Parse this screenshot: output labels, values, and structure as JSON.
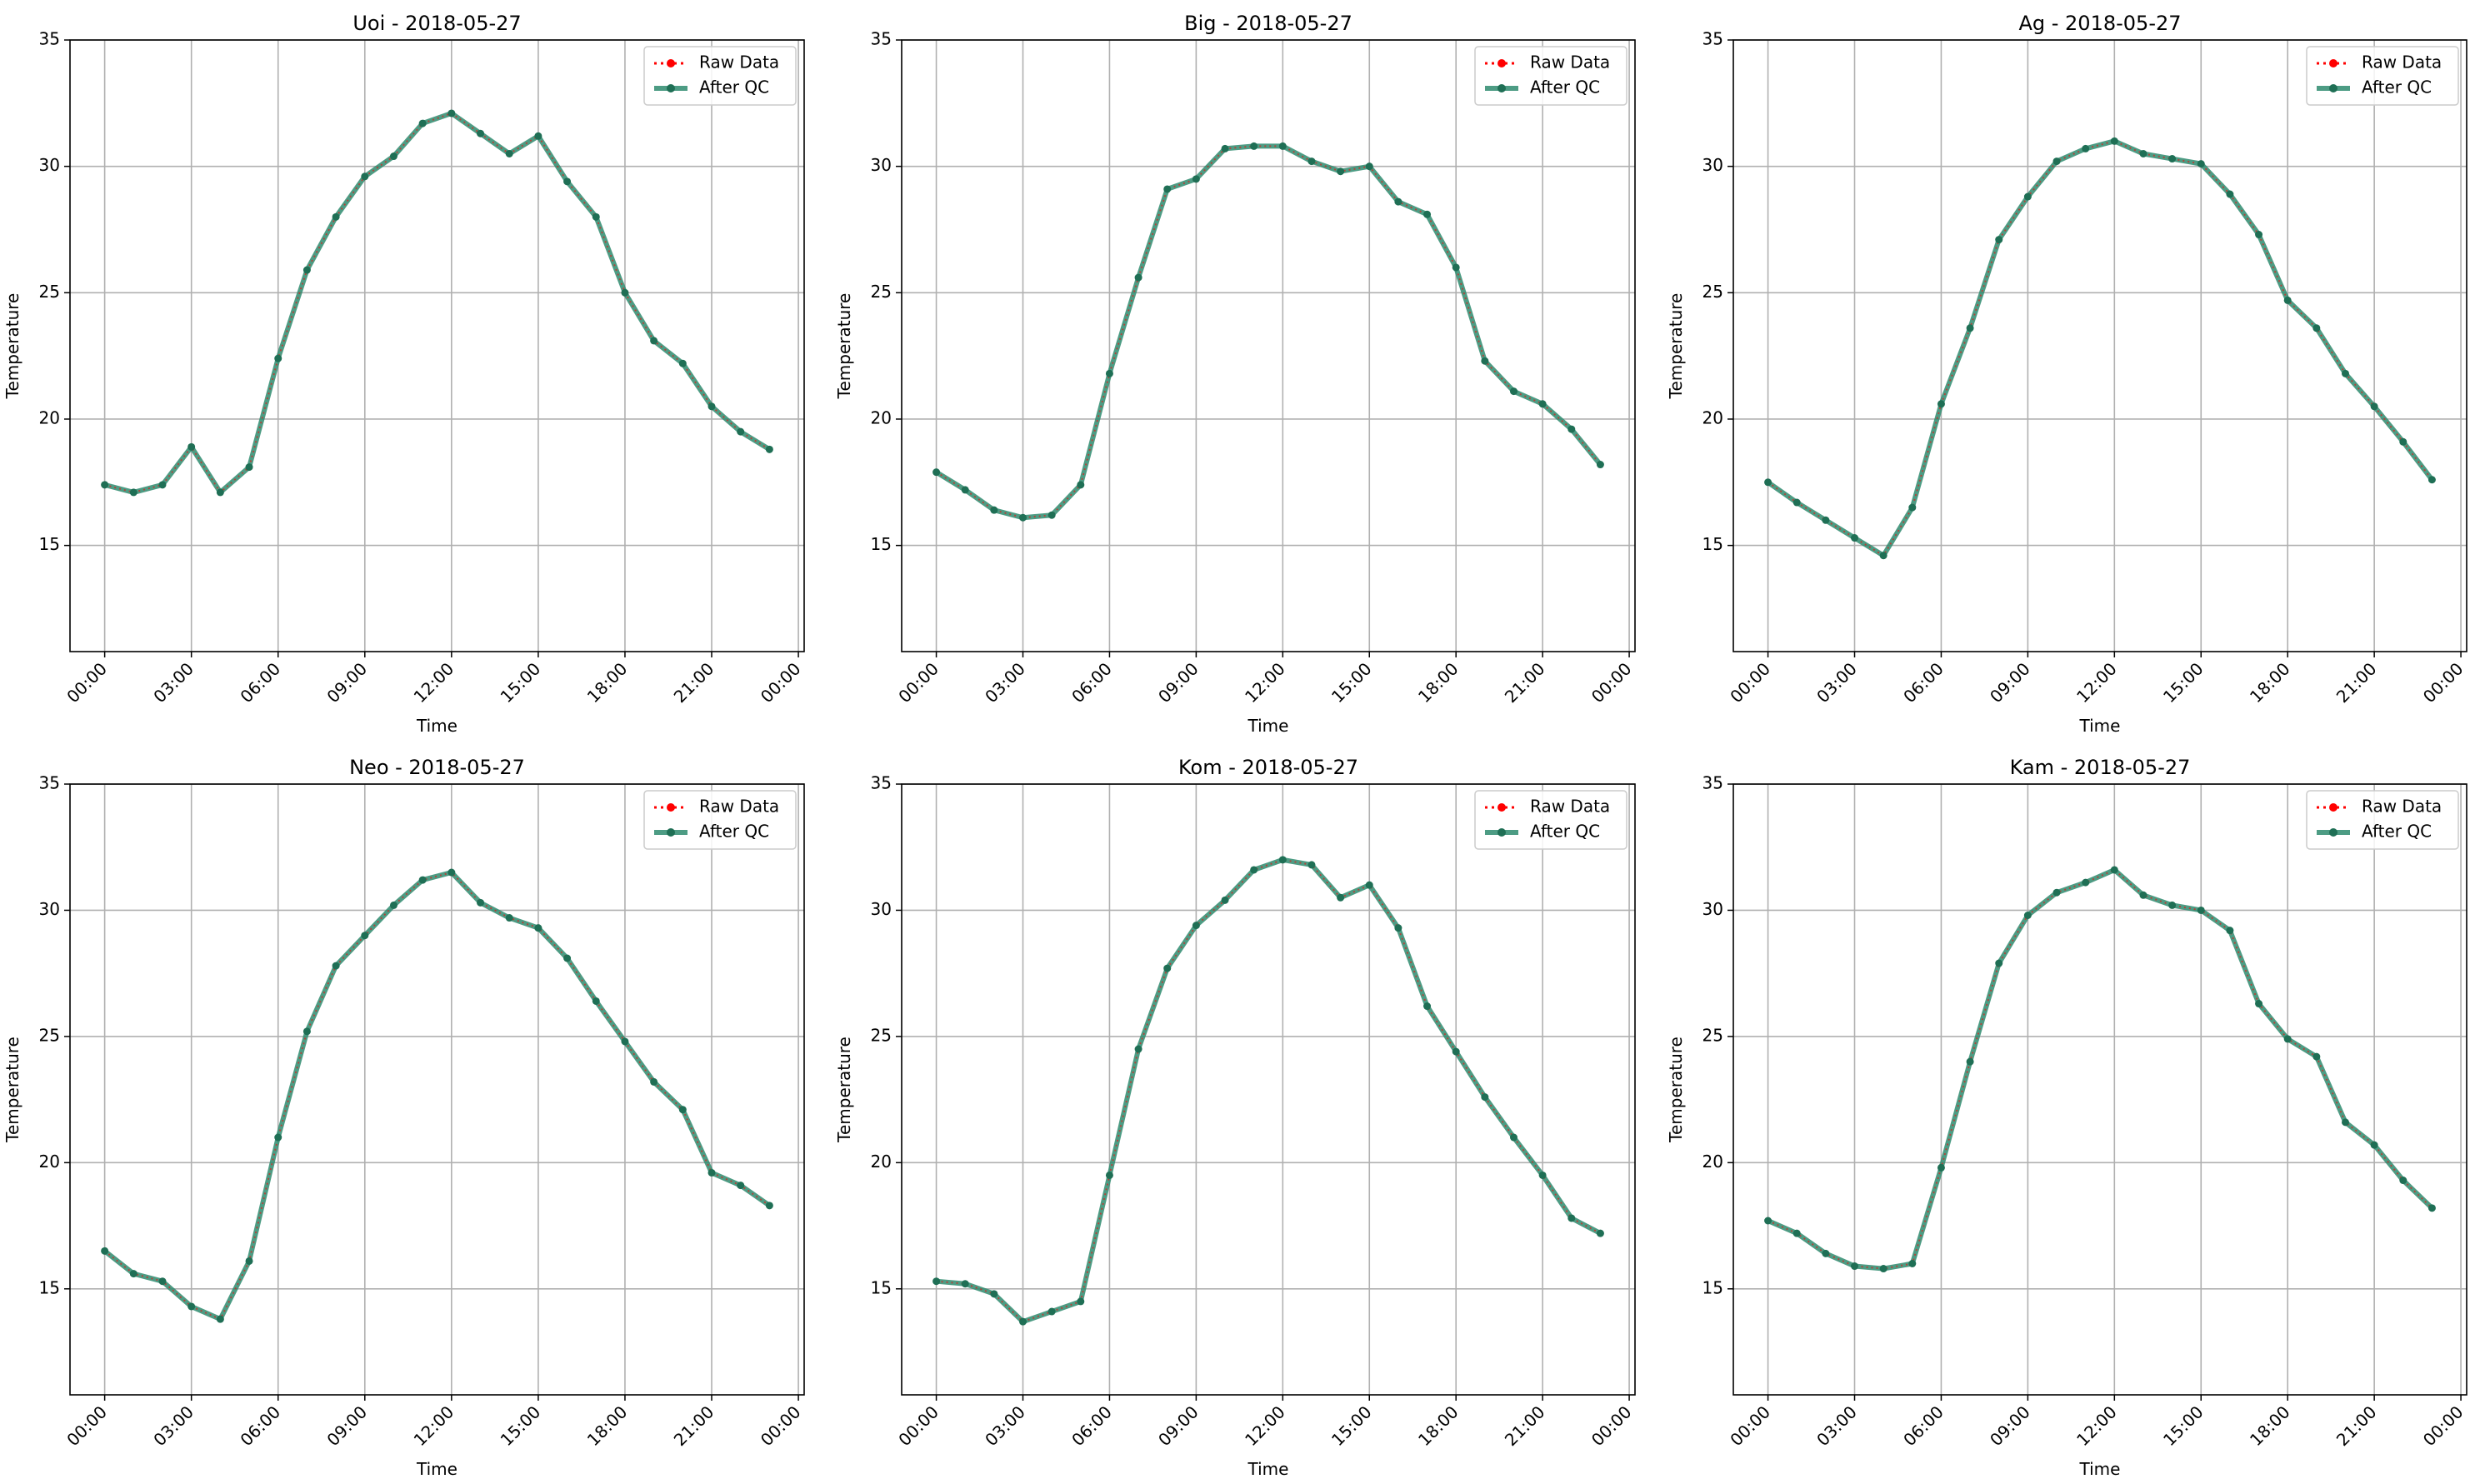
{
  "colors": {
    "raw": "#ff0000",
    "qc": "#2e8b6f",
    "marker_qc": "#1f6f55",
    "grid": "#b0b0b0",
    "axis": "#000000"
  },
  "chart_data": [
    {
      "type": "line",
      "title": "Uoi - 2018-05-27",
      "xlabel": "Time",
      "ylabel": "Temperature",
      "x_ticks": [
        "00:00",
        "03:00",
        "06:00",
        "09:00",
        "12:00",
        "15:00",
        "18:00",
        "21:00",
        "00:00"
      ],
      "y_ticks": [
        "15",
        "20",
        "25",
        "30",
        "35"
      ],
      "xlim_hours": [
        -1.2,
        24.2
      ],
      "ylim": [
        10.8,
        35.0
      ],
      "grid": true,
      "legend_loc": "upper right",
      "legend": [
        "Raw Data",
        "After QC"
      ],
      "x_hours": [
        0,
        1,
        2,
        3,
        4,
        5,
        6,
        7,
        8,
        9,
        10,
        11,
        12,
        13,
        14,
        15,
        16,
        17,
        18,
        19,
        20,
        21,
        22,
        23
      ],
      "series": [
        {
          "name": "Raw Data",
          "values": [
            17.4,
            17.1,
            17.4,
            18.9,
            17.1,
            18.1,
            22.4,
            25.9,
            28.0,
            29.6,
            30.4,
            31.7,
            32.1,
            31.3,
            30.5,
            31.2,
            29.4,
            28.0,
            25.0,
            23.1,
            22.2,
            20.5,
            19.5,
            18.8
          ]
        },
        {
          "name": "After QC",
          "values": [
            17.4,
            17.1,
            17.4,
            18.9,
            17.1,
            18.1,
            22.4,
            25.9,
            28.0,
            29.6,
            30.4,
            31.7,
            32.1,
            31.3,
            30.5,
            31.2,
            29.4,
            28.0,
            25.0,
            23.1,
            22.2,
            20.5,
            19.5,
            18.8
          ]
        }
      ]
    },
    {
      "type": "line",
      "title": "Big - 2018-05-27",
      "xlabel": "Time",
      "ylabel": "Temperature",
      "x_ticks": [
        "00:00",
        "03:00",
        "06:00",
        "09:00",
        "12:00",
        "15:00",
        "18:00",
        "21:00",
        "00:00"
      ],
      "y_ticks": [
        "15",
        "20",
        "25",
        "30",
        "35"
      ],
      "xlim_hours": [
        -1.2,
        24.2
      ],
      "ylim": [
        10.8,
        35.0
      ],
      "grid": true,
      "legend_loc": "upper right",
      "legend": [
        "Raw Data",
        "After QC"
      ],
      "x_hours": [
        0,
        1,
        2,
        3,
        4,
        5,
        6,
        7,
        8,
        9,
        10,
        11,
        12,
        13,
        14,
        15,
        16,
        17,
        18,
        19,
        20,
        21,
        22,
        23
      ],
      "series": [
        {
          "name": "Raw Data",
          "values": [
            17.9,
            17.2,
            16.4,
            16.1,
            16.2,
            17.4,
            21.8,
            25.6,
            29.1,
            29.5,
            30.7,
            30.8,
            30.8,
            30.2,
            29.8,
            30.0,
            28.6,
            28.1,
            26.0,
            22.3,
            21.1,
            20.6,
            19.6,
            18.2
          ]
        },
        {
          "name": "After QC",
          "values": [
            17.9,
            17.2,
            16.4,
            16.1,
            16.2,
            17.4,
            21.8,
            25.6,
            29.1,
            29.5,
            30.7,
            30.8,
            30.8,
            30.2,
            29.8,
            30.0,
            28.6,
            28.1,
            26.0,
            22.3,
            21.1,
            20.6,
            19.6,
            18.2
          ]
        }
      ]
    },
    {
      "type": "line",
      "title": "Ag - 2018-05-27",
      "xlabel": "Time",
      "ylabel": "Temperature",
      "x_ticks": [
        "00:00",
        "03:00",
        "06:00",
        "09:00",
        "12:00",
        "15:00",
        "18:00",
        "21:00",
        "00:00"
      ],
      "y_ticks": [
        "15",
        "20",
        "25",
        "30",
        "35"
      ],
      "xlim_hours": [
        -1.2,
        24.2
      ],
      "ylim": [
        10.8,
        35.0
      ],
      "grid": true,
      "legend_loc": "upper right",
      "legend": [
        "Raw Data",
        "After QC"
      ],
      "x_hours": [
        0,
        1,
        2,
        3,
        4,
        5,
        6,
        7,
        8,
        9,
        10,
        11,
        12,
        13,
        14,
        15,
        16,
        17,
        18,
        19,
        20,
        21,
        22,
        23
      ],
      "series": [
        {
          "name": "Raw Data",
          "values": [
            17.5,
            16.7,
            16.0,
            15.3,
            14.6,
            16.5,
            20.6,
            23.6,
            27.1,
            28.8,
            30.2,
            30.7,
            31.0,
            30.5,
            30.3,
            30.1,
            28.9,
            27.3,
            24.7,
            23.6,
            21.8,
            20.5,
            19.1,
            17.6
          ]
        },
        {
          "name": "After QC",
          "values": [
            17.5,
            16.7,
            16.0,
            15.3,
            14.6,
            16.5,
            20.6,
            23.6,
            27.1,
            28.8,
            30.2,
            30.7,
            31.0,
            30.5,
            30.3,
            30.1,
            28.9,
            27.3,
            24.7,
            23.6,
            21.8,
            20.5,
            19.1,
            17.6
          ]
        }
      ]
    },
    {
      "type": "line",
      "title": "Neo - 2018-05-27",
      "xlabel": "Time",
      "ylabel": "Temperature",
      "x_ticks": [
        "00:00",
        "03:00",
        "06:00",
        "09:00",
        "12:00",
        "15:00",
        "18:00",
        "21:00",
        "00:00"
      ],
      "y_ticks": [
        "15",
        "20",
        "25",
        "30",
        "35"
      ],
      "xlim_hours": [
        -1.2,
        24.2
      ],
      "ylim": [
        10.8,
        35.0
      ],
      "grid": true,
      "legend_loc": "upper right",
      "legend": [
        "Raw Data",
        "After QC"
      ],
      "x_hours": [
        0,
        1,
        2,
        3,
        4,
        5,
        6,
        7,
        8,
        9,
        10,
        11,
        12,
        13,
        14,
        15,
        16,
        17,
        18,
        19,
        20,
        21,
        22,
        23
      ],
      "series": [
        {
          "name": "Raw Data",
          "values": [
            16.5,
            15.6,
            15.3,
            14.3,
            13.8,
            16.1,
            21.0,
            25.2,
            27.8,
            29.0,
            30.2,
            31.2,
            31.5,
            30.3,
            29.7,
            29.3,
            28.1,
            26.4,
            24.8,
            23.2,
            22.1,
            19.6,
            19.1,
            18.3
          ]
        },
        {
          "name": "After QC",
          "values": [
            16.5,
            15.6,
            15.3,
            14.3,
            13.8,
            16.1,
            21.0,
            25.2,
            27.8,
            29.0,
            30.2,
            31.2,
            31.5,
            30.3,
            29.7,
            29.3,
            28.1,
            26.4,
            24.8,
            23.2,
            22.1,
            19.6,
            19.1,
            18.3
          ]
        }
      ]
    },
    {
      "type": "line",
      "title": "Kom - 2018-05-27",
      "xlabel": "Time",
      "ylabel": "Temperature",
      "x_ticks": [
        "00:00",
        "03:00",
        "06:00",
        "09:00",
        "12:00",
        "15:00",
        "18:00",
        "21:00",
        "00:00"
      ],
      "y_ticks": [
        "15",
        "20",
        "25",
        "30",
        "35"
      ],
      "xlim_hours": [
        -1.2,
        24.2
      ],
      "ylim": [
        10.8,
        35.0
      ],
      "grid": true,
      "legend_loc": "upper right",
      "legend": [
        "Raw Data",
        "After QC"
      ],
      "x_hours": [
        0,
        1,
        2,
        3,
        4,
        5,
        6,
        7,
        8,
        9,
        10,
        11,
        12,
        13,
        14,
        15,
        16,
        17,
        18,
        19,
        20,
        21,
        22,
        23
      ],
      "series": [
        {
          "name": "Raw Data",
          "values": [
            15.3,
            15.2,
            14.8,
            13.7,
            14.1,
            14.5,
            19.5,
            24.5,
            27.7,
            29.4,
            30.4,
            31.6,
            32.0,
            31.8,
            30.5,
            31.0,
            29.3,
            26.2,
            24.4,
            22.6,
            21.0,
            19.5,
            17.8,
            17.2
          ]
        },
        {
          "name": "After QC",
          "values": [
            15.3,
            15.2,
            14.8,
            13.7,
            14.1,
            14.5,
            19.5,
            24.5,
            27.7,
            29.4,
            30.4,
            31.6,
            32.0,
            31.8,
            30.5,
            31.0,
            29.3,
            26.2,
            24.4,
            22.6,
            21.0,
            19.5,
            17.8,
            17.2
          ]
        }
      ]
    },
    {
      "type": "line",
      "title": "Kam - 2018-05-27",
      "xlabel": "Time",
      "ylabel": "Temperature",
      "x_ticks": [
        "00:00",
        "03:00",
        "06:00",
        "09:00",
        "12:00",
        "15:00",
        "18:00",
        "21:00",
        "00:00"
      ],
      "y_ticks": [
        "15",
        "20",
        "25",
        "30",
        "35"
      ],
      "xlim_hours": [
        -1.2,
        24.2
      ],
      "ylim": [
        10.8,
        35.0
      ],
      "grid": true,
      "legend_loc": "upper right",
      "legend": [
        "Raw Data",
        "After QC"
      ],
      "x_hours": [
        0,
        1,
        2,
        3,
        4,
        5,
        6,
        7,
        8,
        9,
        10,
        11,
        12,
        13,
        14,
        15,
        16,
        17,
        18,
        19,
        20,
        21,
        22,
        23
      ],
      "series": [
        {
          "name": "Raw Data",
          "values": [
            17.7,
            17.2,
            16.4,
            15.9,
            15.8,
            16.0,
            19.8,
            24.0,
            27.9,
            29.8,
            30.7,
            31.1,
            31.6,
            30.6,
            30.2,
            30.0,
            29.2,
            26.3,
            24.9,
            24.2,
            21.6,
            20.7,
            19.3,
            18.2
          ]
        },
        {
          "name": "After QC",
          "values": [
            17.7,
            17.2,
            16.4,
            15.9,
            15.8,
            16.0,
            19.8,
            24.0,
            27.9,
            29.8,
            30.7,
            31.1,
            31.6,
            30.6,
            30.2,
            30.0,
            29.2,
            26.3,
            24.9,
            24.2,
            21.6,
            20.7,
            19.3,
            18.2
          ]
        }
      ]
    }
  ]
}
